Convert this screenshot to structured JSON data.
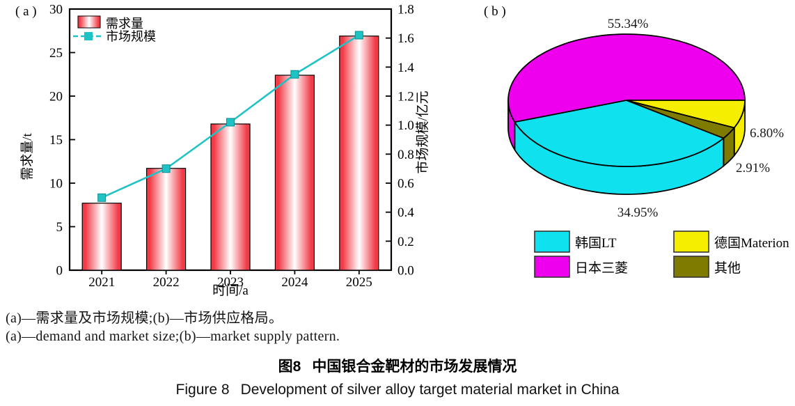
{
  "figure": {
    "panel_a_label": "( a )",
    "panel_b_label": "( b )"
  },
  "chart_data": [
    {
      "type": "bar",
      "title": "",
      "categories": [
        "2021",
        "2022",
        "2023",
        "2024",
        "2025"
      ],
      "series": [
        {
          "name": "需求量",
          "type": "bar",
          "axis": "left",
          "values": [
            7.7,
            11.7,
            16.8,
            22.4,
            26.9
          ]
        },
        {
          "name": "市场规模",
          "type": "line",
          "axis": "right",
          "values": [
            0.5,
            0.7,
            1.02,
            1.35,
            1.62
          ]
        }
      ],
      "xlabel": "时间/a",
      "ylabel_left": "需求量/t",
      "ylabel_right": "市场规模/亿元",
      "ylim_left": [
        0,
        30
      ],
      "yticks_left": [
        0,
        5,
        10,
        15,
        20,
        25,
        30
      ],
      "ylim_right": [
        0,
        1.8
      ],
      "yticks_right": [
        "0.0",
        "0.2",
        "0.4",
        "0.6",
        "0.8",
        "1.0",
        "1.2",
        "1.4",
        "1.6",
        "1.8"
      ],
      "legend_position": "upper-left",
      "grid": false,
      "bar_edge_color": "#f13b46",
      "bar_center_color": "#ffffff",
      "line_color": "#1fc2c5",
      "marker_edge_color": "#0b8d90"
    },
    {
      "type": "pie",
      "style_3d": true,
      "start_angle": 0,
      "direction": "ccw",
      "slices": [
        {
          "key": "japan-mitsubishi",
          "label": "日本三菱",
          "value": 55.34,
          "pct_label": "55.34%",
          "color": "#ee00ee"
        },
        {
          "key": "korea-lt",
          "label": "韩国LT",
          "value": 34.95,
          "pct_label": "34.95%",
          "color": "#0fe2ee"
        },
        {
          "key": "others",
          "label": "其他",
          "value": 2.91,
          "pct_label": "2.91%",
          "color": "#7f7b00"
        },
        {
          "key": "germany-materion",
          "label": "德国Materion",
          "value": 6.8,
          "pct_label": "6.80%",
          "color": "#f5ee00"
        }
      ],
      "legend_rows": [
        [
          "韩国LT",
          "德国Materion"
        ],
        [
          "日本三菱",
          "其他"
        ]
      ]
    }
  ],
  "captions": {
    "note_cn": "(a)—需求量及市场规模;(b)—市场供应格局。",
    "note_en": "(a)—demand and market size;(b)—market supply pattern.",
    "title_cn_prefix": "图8",
    "title_cn_text": "中国银合金靶材的市场发展情况",
    "title_en_prefix": "Figure 8",
    "title_en_text": "Development of silver alloy target material market in China"
  }
}
